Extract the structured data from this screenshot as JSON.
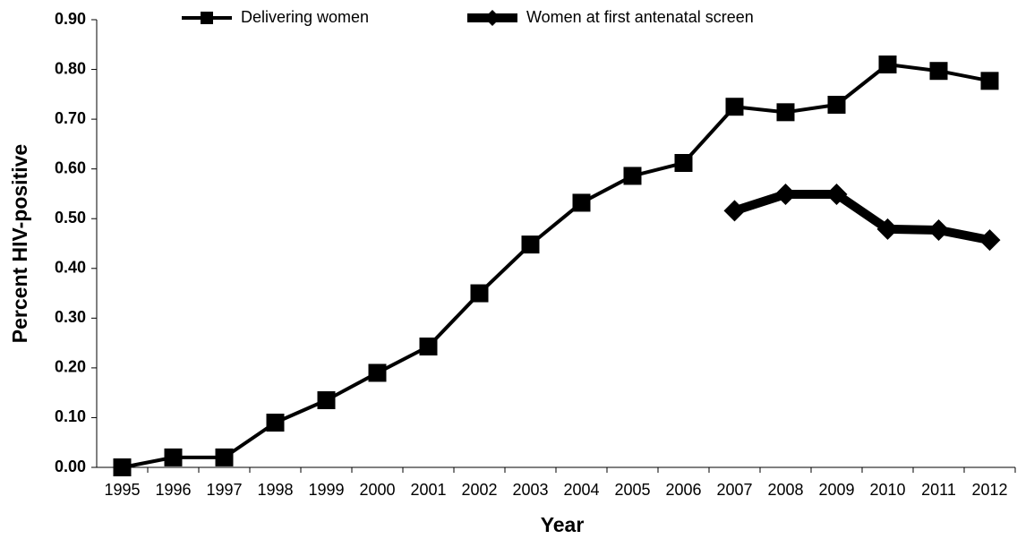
{
  "chart_data": {
    "type": "line",
    "xlabel": "Year",
    "ylabel": "Percent HIV-positive",
    "categories": [
      "1995",
      "1996",
      "1997",
      "1998",
      "1999",
      "2000",
      "2001",
      "2002",
      "2003",
      "2004",
      "2005",
      "2006",
      "2007",
      "2008",
      "2009",
      "2010",
      "2011",
      "2012"
    ],
    "series": [
      {
        "name": "Delivering women",
        "color": "#000000",
        "marker": "square",
        "values": [
          0.0,
          0.02,
          0.02,
          0.09,
          0.135,
          0.19,
          0.243,
          0.35,
          0.448,
          0.532,
          0.586,
          0.612,
          0.725,
          0.714,
          0.729,
          0.81,
          0.797,
          0.777
        ]
      },
      {
        "name": "Women at first antenatal screen",
        "color": "#000000",
        "marker": "diamond",
        "values": [
          null,
          null,
          null,
          null,
          null,
          null,
          null,
          null,
          null,
          null,
          null,
          null,
          0.516,
          0.549,
          0.549,
          0.479,
          0.477,
          0.457
        ]
      }
    ],
    "ylim": [
      0,
      0.9
    ],
    "yticks": [
      {
        "value": 0,
        "label": "0.00"
      },
      {
        "value": 0.1,
        "label": "0.10"
      },
      {
        "value": 0.2,
        "label": "0.20"
      },
      {
        "value": 0.3,
        "label": "0.30"
      },
      {
        "value": 0.4,
        "label": "0.40"
      },
      {
        "value": 0.5,
        "label": "0.50"
      },
      {
        "value": 0.6,
        "label": "0.60"
      },
      {
        "value": 0.7,
        "label": "0.70"
      },
      {
        "value": 0.8,
        "label": "0.80"
      },
      {
        "value": 0.9,
        "label": "0.90"
      }
    ],
    "grid": false,
    "legend": "top"
  }
}
